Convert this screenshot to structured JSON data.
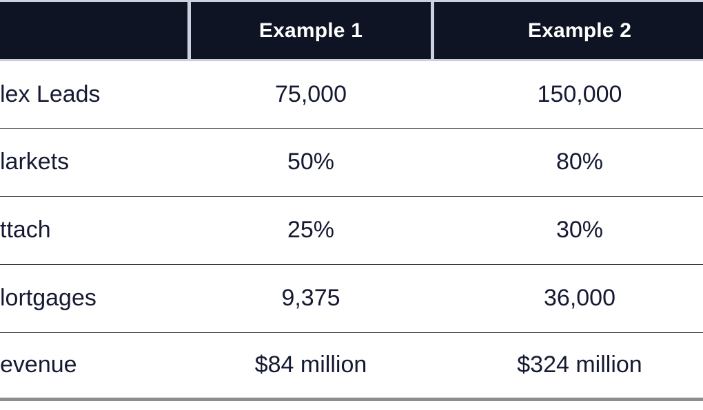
{
  "chart_data": {
    "type": "table",
    "columns": [
      "",
      "Example 1",
      "Example 2"
    ],
    "rows": [
      [
        "lex Leads",
        "75,000",
        "150,000"
      ],
      [
        "larkets",
        "50%",
        "80%"
      ],
      [
        "ttach",
        "25%",
        "30%"
      ],
      [
        "lortgages",
        "9,375",
        "36,000"
      ],
      [
        "evenue",
        "$84 million",
        "$324 million"
      ]
    ]
  },
  "colors": {
    "header-bg": "#0e1424",
    "header-text": "#ffffff",
    "body-text": "#151a32",
    "edge-line": "#ccd1dd",
    "row-divider": "#3c3c3c",
    "bottom-bar": "#8d8d8d",
    "page-bg": "#ffffff"
  }
}
